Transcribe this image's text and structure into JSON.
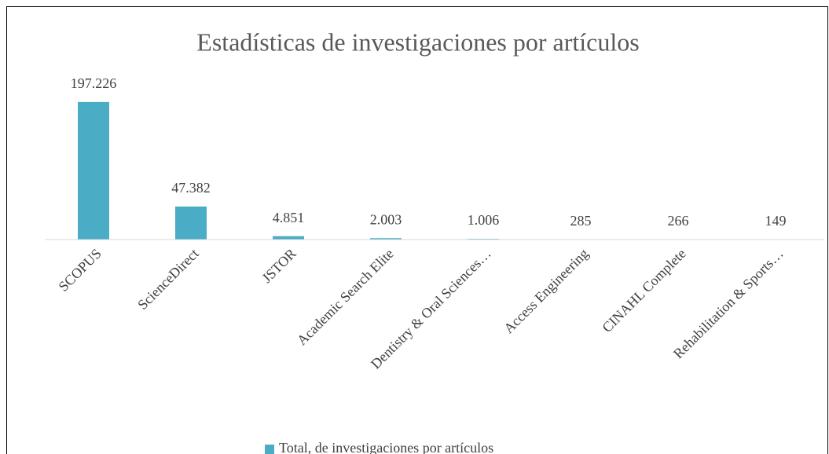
{
  "chart_data": {
    "type": "bar",
    "title": "Estadísticas de investigaciones por artículos",
    "categories": [
      "SCOPUS",
      "ScienceDirect",
      "JSTOR",
      "Academic Search Elite",
      "Dentistry & Oral Sciences…",
      "Access Engineering",
      "CINAHL Complete",
      "Rehabilitation & Sports…"
    ],
    "series": [
      {
        "name": "Total, de investigaciones por artículos",
        "color": "#4bacc6",
        "values": [
          197226,
          47382,
          4851,
          2003,
          1006,
          285,
          266,
          149
        ],
        "value_labels": [
          "197.226",
          "47.382",
          "4.851",
          "2.003",
          "1.006",
          "285",
          "266",
          "149"
        ]
      }
    ],
    "ylim": [
      0,
      250000
    ],
    "legend": "bottom"
  }
}
